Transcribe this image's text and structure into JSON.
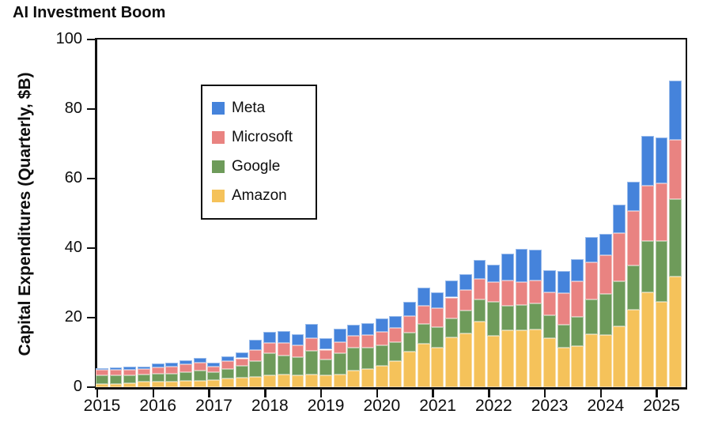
{
  "title": "AI Investment Boom",
  "chart_data": {
    "type": "bar",
    "stacked": true,
    "title": "AI Investment Boom",
    "xlabel": "",
    "ylabel": "Capital Expenditures (Quarterly, $B)",
    "ylim": [
      0,
      100
    ],
    "yticks": [
      0,
      20,
      40,
      60,
      80,
      100
    ],
    "x_year_ticks": [
      "2015",
      "2016",
      "2017",
      "2018",
      "2019",
      "2020",
      "2021",
      "2022",
      "2023",
      "2024",
      "2025"
    ],
    "quarters_per_year": 4,
    "grid": false,
    "legend_position": "upper-left",
    "legend_order": [
      "Meta",
      "Microsoft",
      "Google",
      "Amazon"
    ],
    "categories": [
      "2015Q1",
      "2015Q2",
      "2015Q3",
      "2015Q4",
      "2016Q1",
      "2016Q2",
      "2016Q3",
      "2016Q4",
      "2017Q1",
      "2017Q2",
      "2017Q3",
      "2017Q4",
      "2018Q1",
      "2018Q2",
      "2018Q3",
      "2018Q4",
      "2019Q1",
      "2019Q2",
      "2019Q3",
      "2019Q4",
      "2020Q1",
      "2020Q2",
      "2020Q3",
      "2020Q4",
      "2021Q1",
      "2021Q2",
      "2021Q3",
      "2021Q4",
      "2022Q1",
      "2022Q2",
      "2022Q3",
      "2022Q4",
      "2023Q1",
      "2023Q2",
      "2023Q3",
      "2023Q4",
      "2024Q1",
      "2024Q2",
      "2024Q3",
      "2024Q4",
      "2025Q1",
      "2025Q2"
    ],
    "series": [
      {
        "name": "Amazon",
        "color": "#f5c25a",
        "values": [
          0.9,
          1.0,
          1.2,
          1.5,
          1.5,
          1.7,
          1.8,
          1.8,
          2.0,
          2.5,
          2.7,
          3.0,
          3.5,
          3.6,
          3.4,
          3.7,
          3.3,
          3.6,
          4.7,
          5.3,
          6.1,
          7.5,
          10.2,
          12.6,
          11.4,
          14.3,
          15.4,
          18.8,
          14.7,
          16.3,
          16.4,
          16.6,
          14.2,
          11.3,
          11.8,
          15.3,
          14.9,
          17.4,
          22.3,
          27.2,
          24.6,
          31.8
        ]
      },
      {
        "name": "Google",
        "color": "#6e9b5a",
        "values": [
          2.6,
          2.5,
          2.3,
          2.1,
          2.4,
          2.2,
          2.6,
          3.0,
          2.3,
          2.8,
          3.5,
          4.4,
          6.3,
          5.6,
          5.2,
          6.8,
          4.6,
          6.1,
          6.7,
          6.1,
          6.0,
          5.4,
          5.4,
          5.6,
          5.9,
          5.4,
          6.6,
          6.4,
          9.9,
          7.1,
          7.3,
          7.6,
          6.4,
          6.6,
          8.4,
          9.9,
          12.0,
          13.1,
          12.8,
          14.8,
          17.4,
          22.3
        ]
      },
      {
        "name": "Microsoft",
        "color": "#e98381",
        "values": [
          1.4,
          1.5,
          1.5,
          1.6,
          1.8,
          2.1,
          2.2,
          2.3,
          1.6,
          2.1,
          2.1,
          3.2,
          2.9,
          3.5,
          3.4,
          3.6,
          2.9,
          3.3,
          3.4,
          3.5,
          3.9,
          4.2,
          4.9,
          5.2,
          5.5,
          6.1,
          5.9,
          6.0,
          5.6,
          7.2,
          6.5,
          6.5,
          6.6,
          9.2,
          10.2,
          10.7,
          11.0,
          13.8,
          15.5,
          16.0,
          16.6,
          17.0
        ]
      },
      {
        "name": "Meta",
        "color": "#4583db",
        "values": [
          0.6,
          0.7,
          0.8,
          0.8,
          1.1,
          1.0,
          1.1,
          1.3,
          1.1,
          1.4,
          1.8,
          3.0,
          3.3,
          3.5,
          3.3,
          4.2,
          3.3,
          3.8,
          3.1,
          3.6,
          3.8,
          3.3,
          4.1,
          5.2,
          4.4,
          4.9,
          4.7,
          5.3,
          5.0,
          7.9,
          9.5,
          8.8,
          6.5,
          6.3,
          6.4,
          7.2,
          6.3,
          8.3,
          8.5,
          14.2,
          13.3,
          17.1
        ]
      }
    ]
  }
}
